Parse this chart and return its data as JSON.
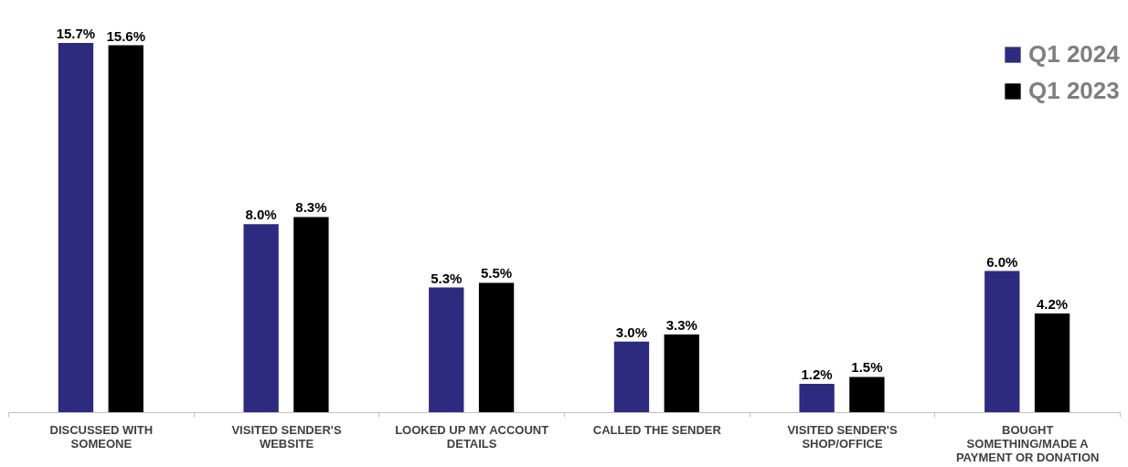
{
  "chart_data": {
    "type": "bar",
    "categories": [
      "DISCUSSED WITH SOMEONE",
      "VISITED SENDER'S WEBSITE",
      "LOOKED UP MY ACCOUNT DETAILS",
      "CALLED THE SENDER",
      "VISITED SENDER'S SHOP/OFFICE",
      "BOUGHT SOMETHING/MADE A PAYMENT OR DONATION"
    ],
    "series": [
      {
        "name": "Q1 2024",
        "color": "#2e2a80",
        "values": [
          15.7,
          8.0,
          5.3,
          3.0,
          1.2,
          6.0
        ],
        "value_labels": [
          "15.7%",
          "8.0%",
          "5.3%",
          "3.0%",
          "1.2%",
          "6.0%"
        ]
      },
      {
        "name": "Q1 2023",
        "color": "#000000",
        "values": [
          15.6,
          8.3,
          5.5,
          3.3,
          1.5,
          4.2
        ],
        "value_labels": [
          "15.6%",
          "8.3%",
          "5.5%",
          "3.3%",
          "1.5%",
          "4.2%"
        ]
      }
    ],
    "legend": "top right",
    "grid": false
  }
}
